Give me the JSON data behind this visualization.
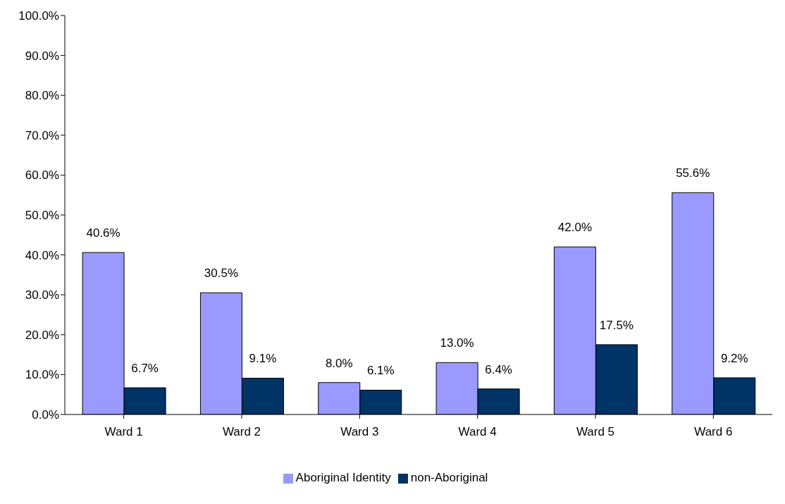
{
  "chart_data": {
    "type": "bar",
    "categories": [
      "Ward 1",
      "Ward 2",
      "Ward 3",
      "Ward 4",
      "Ward 5",
      "Ward 6"
    ],
    "series": [
      {
        "name": "Aboriginal Identity",
        "color": "#9999ff",
        "values": [
          40.6,
          30.5,
          8.0,
          13.0,
          42.0,
          55.6
        ],
        "value_labels": [
          "40.6%",
          "30.5%",
          "8.0%",
          "13.0%",
          "42.0%",
          "55.6%"
        ]
      },
      {
        "name": "non-Aboriginal",
        "color": "#003366",
        "values": [
          6.7,
          9.1,
          6.1,
          6.4,
          17.5,
          9.2
        ],
        "value_labels": [
          "6.7%",
          "9.1%",
          "6.1%",
          "6.4%",
          "17.5%",
          "9.2%"
        ]
      }
    ],
    "ylim": [
      0,
      100
    ],
    "yticks": [
      {
        "value": 0,
        "label": "0.0%"
      },
      {
        "value": 10,
        "label": "10.0%"
      },
      {
        "value": 20,
        "label": "20.0%"
      },
      {
        "value": 30,
        "label": "30.0%"
      },
      {
        "value": 40,
        "label": "40.0%"
      },
      {
        "value": 50,
        "label": "50.0%"
      },
      {
        "value": 60,
        "label": "60.0%"
      },
      {
        "value": 70,
        "label": "70.0%"
      },
      {
        "value": 80,
        "label": "80.0%"
      },
      {
        "value": 90,
        "label": "90.0%"
      },
      {
        "value": 100,
        "label": "100.0%"
      }
    ],
    "grid": false,
    "legend": "bottom"
  }
}
